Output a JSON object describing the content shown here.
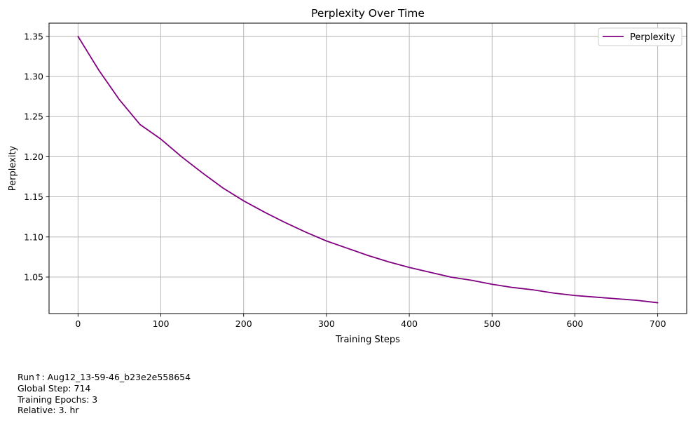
{
  "chart_data": {
    "type": "line",
    "title": "Perplexity Over Time",
    "xlabel": "Training Steps",
    "ylabel": "Perplexity",
    "xlim": [
      -35,
      735
    ],
    "ylim": [
      1.0045,
      1.3665
    ],
    "xticks": [
      0,
      100,
      200,
      300,
      400,
      500,
      600,
      700
    ],
    "yticks": [
      1.05,
      1.1,
      1.15,
      1.2,
      1.25,
      1.3,
      1.35
    ],
    "ytick_labels": [
      "1.05",
      "1.10",
      "1.15",
      "1.20",
      "1.25",
      "1.30",
      "1.35"
    ],
    "grid": true,
    "legend_position": "top-right",
    "series": [
      {
        "name": "Perplexity",
        "color": "#800080",
        "x": [
          0,
          25,
          50,
          75,
          100,
          125,
          150,
          175,
          200,
          225,
          250,
          275,
          300,
          325,
          350,
          375,
          400,
          425,
          450,
          475,
          500,
          525,
          550,
          575,
          600,
          625,
          650,
          675,
          700
        ],
        "y": [
          1.35,
          1.308,
          1.271,
          1.24,
          1.222,
          1.2,
          1.18,
          1.161,
          1.145,
          1.131,
          1.118,
          1.106,
          1.095,
          1.086,
          1.077,
          1.069,
          1.062,
          1.056,
          1.05,
          1.046,
          1.041,
          1.037,
          1.034,
          1.03,
          1.027,
          1.025,
          1.023,
          1.021,
          1.018
        ]
      }
    ]
  },
  "run_info": {
    "run_line": "Run↑: Aug12_13-59-46_b23e2e558654",
    "global_step_line": "Global Step: 714",
    "epochs_line": "Training Epochs: 3",
    "relative_line": "Relative: 3. hr"
  }
}
